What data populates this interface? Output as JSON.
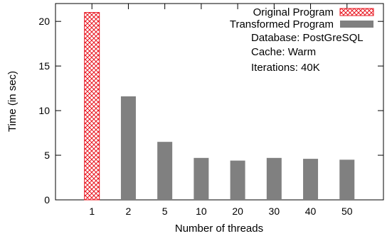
{
  "chart_data": {
    "type": "bar",
    "xlabel": "Number of threads",
    "ylabel": "Time (in sec)",
    "ylim": [
      0,
      22
    ],
    "yticks": [
      0,
      5,
      10,
      15,
      20
    ],
    "categories": [
      "1",
      "2",
      "5",
      "10",
      "20",
      "30",
      "40",
      "50"
    ],
    "series": [
      {
        "name": "Original Program",
        "color": "#e8141e",
        "pattern": "crosshatch",
        "values": [
          21.0,
          null,
          null,
          null,
          null,
          null,
          null,
          null
        ]
      },
      {
        "name": "Transformed Program",
        "color": "#808080",
        "pattern": "solid",
        "values": [
          null,
          11.6,
          6.5,
          4.7,
          4.4,
          4.7,
          4.6,
          4.5
        ]
      }
    ],
    "legend_position": "top-right",
    "annotations": [
      "Database: PostGreSQL",
      "Cache: Warm",
      "Iterations: 40K"
    ],
    "grid": false
  }
}
